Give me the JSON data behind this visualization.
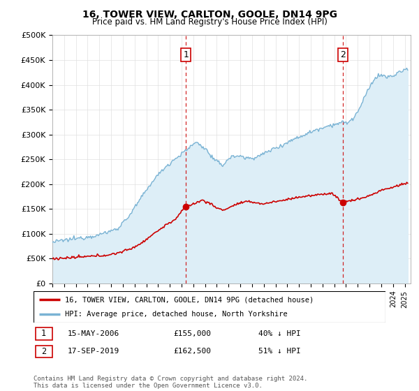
{
  "title": "16, TOWER VIEW, CARLTON, GOOLE, DN14 9PG",
  "subtitle": "Price paid vs. HM Land Registry's House Price Index (HPI)",
  "ylabel_ticks": [
    "£0",
    "£50K",
    "£100K",
    "£150K",
    "£200K",
    "£250K",
    "£300K",
    "£350K",
    "£400K",
    "£450K",
    "£500K"
  ],
  "ytick_values": [
    0,
    50000,
    100000,
    150000,
    200000,
    250000,
    300000,
    350000,
    400000,
    450000,
    500000
  ],
  "ylim": [
    0,
    500000
  ],
  "xlim_start": 1995.0,
  "xlim_end": 2025.5,
  "hpi_color": "#7ab3d4",
  "hpi_fill_color": "#ddeef7",
  "price_color": "#cc0000",
  "vline_color": "#cc0000",
  "purchase1_x": 2006.37,
  "purchase1_y": 155000,
  "purchase1_label": "1",
  "purchase2_x": 2019.71,
  "purchase2_y": 162500,
  "purchase2_label": "2",
  "legend_line1": "16, TOWER VIEW, CARLTON, GOOLE, DN14 9PG (detached house)",
  "legend_line2": "HPI: Average price, detached house, North Yorkshire",
  "table_row1_num": "1",
  "table_row1_date": "15-MAY-2006",
  "table_row1_price": "£155,000",
  "table_row1_hpi": "40% ↓ HPI",
  "table_row2_num": "2",
  "table_row2_date": "17-SEP-2019",
  "table_row2_price": "£162,500",
  "table_row2_hpi": "51% ↓ HPI",
  "footer": "Contains HM Land Registry data © Crown copyright and database right 2024.\nThis data is licensed under the Open Government Licence v3.0.",
  "background_color": "#ffffff",
  "grid_color": "#e0e0e0",
  "hpi_anchors": [
    [
      1995.0,
      83000
    ],
    [
      1996.0,
      87000
    ],
    [
      1997.5,
      92000
    ],
    [
      1999.0,
      98000
    ],
    [
      2000.5,
      110000
    ],
    [
      2001.5,
      135000
    ],
    [
      2002.5,
      170000
    ],
    [
      2003.5,
      205000
    ],
    [
      2004.5,
      232000
    ],
    [
      2005.5,
      252000
    ],
    [
      2006.5,
      270000
    ],
    [
      2007.2,
      285000
    ],
    [
      2008.0,
      272000
    ],
    [
      2008.8,
      248000
    ],
    [
      2009.5,
      238000
    ],
    [
      2010.0,
      252000
    ],
    [
      2010.8,
      258000
    ],
    [
      2011.5,
      252000
    ],
    [
      2012.5,
      255000
    ],
    [
      2013.5,
      268000
    ],
    [
      2014.5,
      278000
    ],
    [
      2015.5,
      290000
    ],
    [
      2016.5,
      300000
    ],
    [
      2017.5,
      310000
    ],
    [
      2018.5,
      318000
    ],
    [
      2019.0,
      320000
    ],
    [
      2019.71,
      325000
    ],
    [
      2020.0,
      322000
    ],
    [
      2020.5,
      330000
    ],
    [
      2021.0,
      345000
    ],
    [
      2021.5,
      370000
    ],
    [
      2022.0,
      395000
    ],
    [
      2022.5,
      415000
    ],
    [
      2023.0,
      420000
    ],
    [
      2023.5,
      415000
    ],
    [
      2024.0,
      418000
    ],
    [
      2024.5,
      425000
    ],
    [
      2025.2,
      432000
    ]
  ],
  "price_anchors": [
    [
      1995.0,
      50000
    ],
    [
      1996.0,
      51000
    ],
    [
      1997.0,
      52500
    ],
    [
      1998.5,
      55000
    ],
    [
      2000.0,
      58000
    ],
    [
      2001.5,
      68000
    ],
    [
      2002.5,
      80000
    ],
    [
      2003.5,
      98000
    ],
    [
      2004.5,
      115000
    ],
    [
      2005.5,
      130000
    ],
    [
      2006.37,
      155000
    ],
    [
      2007.0,
      160000
    ],
    [
      2007.8,
      168000
    ],
    [
      2008.5,
      160000
    ],
    [
      2009.0,
      152000
    ],
    [
      2009.5,
      148000
    ],
    [
      2010.0,
      152000
    ],
    [
      2010.5,
      158000
    ],
    [
      2011.0,
      162000
    ],
    [
      2011.8,
      165000
    ],
    [
      2012.5,
      162000
    ],
    [
      2013.0,
      160000
    ],
    [
      2013.5,
      163000
    ],
    [
      2014.0,
      165000
    ],
    [
      2014.8,
      168000
    ],
    [
      2015.5,
      172000
    ],
    [
      2016.0,
      174000
    ],
    [
      2016.8,
      176000
    ],
    [
      2017.5,
      178000
    ],
    [
      2018.0,
      180000
    ],
    [
      2018.8,
      182000
    ],
    [
      2019.71,
      162500
    ],
    [
      2020.0,
      165000
    ],
    [
      2020.5,
      167000
    ],
    [
      2021.0,
      170000
    ],
    [
      2021.8,
      175000
    ],
    [
      2022.5,
      182000
    ],
    [
      2023.0,
      188000
    ],
    [
      2023.8,
      192000
    ],
    [
      2024.5,
      198000
    ],
    [
      2025.2,
      202000
    ]
  ]
}
